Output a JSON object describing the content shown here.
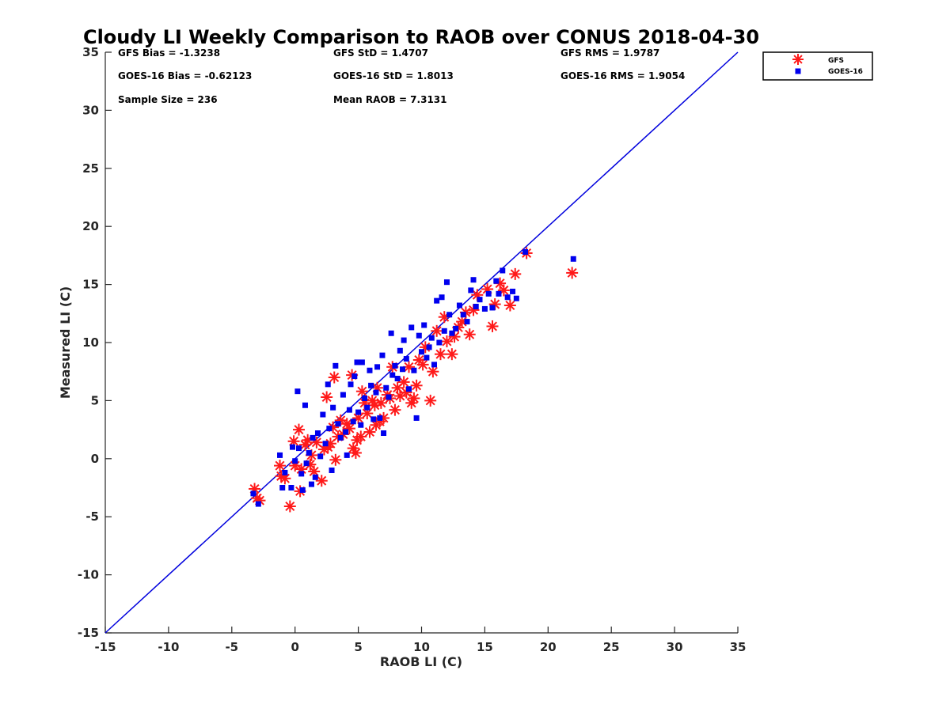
{
  "chart_data": {
    "type": "scatter",
    "title": "Cloudy LI Weekly Comparison to RAOB over CONUS 2018-04-30",
    "xlabel": "RAOB LI (C)",
    "ylabel": "Measured LI (C)",
    "xlim": [
      -15,
      35
    ],
    "ylim": [
      -15,
      35
    ],
    "xticks": [
      "-15",
      "-10",
      "-5",
      "0",
      "5",
      "10",
      "15",
      "20",
      "25",
      "30",
      "35"
    ],
    "yticks": [
      "-15",
      "-10",
      "-5",
      "0",
      "5",
      "10",
      "15",
      "20",
      "25",
      "30",
      "35"
    ],
    "grid": false,
    "legend_position": "outside top-right",
    "stats": {
      "gfs_bias": "GFS Bias = -1.3238",
      "gfs_std": "GFS StD = 1.4707",
      "gfs_rms": "GFS RMS = 1.9787",
      "goes_bias": "GOES-16 Bias = -0.62123",
      "goes_std": "GOES-16 StD = 1.8013",
      "goes_rms": "GOES-16 RMS = 1.9054",
      "sample_size": "Sample Size = 236",
      "mean_raob": "Mean RAOB = 7.3131"
    },
    "reference_line": {
      "x": [
        -15,
        35
      ],
      "y": [
        -15,
        35
      ],
      "color": "#0000dd"
    },
    "series": [
      {
        "name": "GFS",
        "marker": "asterisk",
        "color": "#ff1a1a",
        "points": [
          [
            -3.2,
            -2.6
          ],
          [
            -3.0,
            -3.4
          ],
          [
            -2.8,
            -3.6
          ],
          [
            -1.2,
            -0.6
          ],
          [
            -1.1,
            -1.5
          ],
          [
            -0.8,
            -1.7
          ],
          [
            -0.4,
            -4.1
          ],
          [
            -0.1,
            1.5
          ],
          [
            0.0,
            -0.6
          ],
          [
            0.3,
            2.5
          ],
          [
            0.4,
            -2.8
          ],
          [
            0.5,
            -0.9
          ],
          [
            0.8,
            1.2
          ],
          [
            1.0,
            1.6
          ],
          [
            1.2,
            -0.5
          ],
          [
            1.3,
            0.3
          ],
          [
            1.5,
            -1.1
          ],
          [
            1.7,
            1.4
          ],
          [
            2.1,
            -1.9
          ],
          [
            2.3,
            0.8
          ],
          [
            2.5,
            5.3
          ],
          [
            2.6,
            1.0
          ],
          [
            2.8,
            1.3
          ],
          [
            3.0,
            2.7
          ],
          [
            3.1,
            7.0
          ],
          [
            3.2,
            -0.1
          ],
          [
            3.4,
            1.9
          ],
          [
            3.6,
            3.3
          ],
          [
            3.8,
            2.1
          ],
          [
            4.1,
            3.0
          ],
          [
            4.3,
            2.6
          ],
          [
            4.5,
            7.2
          ],
          [
            4.6,
            0.9
          ],
          [
            4.8,
            0.5
          ],
          [
            4.9,
            1.6
          ],
          [
            5.0,
            3.5
          ],
          [
            5.2,
            1.9
          ],
          [
            5.3,
            5.8
          ],
          [
            5.5,
            4.8
          ],
          [
            5.7,
            3.9
          ],
          [
            5.9,
            2.3
          ],
          [
            6.1,
            5.0
          ],
          [
            6.3,
            4.6
          ],
          [
            6.4,
            2.9
          ],
          [
            6.5,
            6.1
          ],
          [
            6.7,
            3.2
          ],
          [
            6.8,
            4.8
          ],
          [
            7.0,
            3.5
          ],
          [
            7.3,
            5.5
          ],
          [
            7.5,
            5.2
          ],
          [
            7.7,
            7.9
          ],
          [
            7.9,
            4.2
          ],
          [
            8.1,
            6.1
          ],
          [
            8.3,
            5.4
          ],
          [
            8.6,
            6.6
          ],
          [
            8.8,
            5.7
          ],
          [
            9.0,
            7.9
          ],
          [
            9.2,
            4.8
          ],
          [
            9.4,
            5.2
          ],
          [
            9.6,
            6.3
          ],
          [
            9.8,
            8.5
          ],
          [
            10.1,
            8.1
          ],
          [
            10.3,
            9.6
          ],
          [
            10.7,
            5.0
          ],
          [
            10.9,
            7.5
          ],
          [
            11.2,
            11.0
          ],
          [
            11.5,
            9.0
          ],
          [
            11.8,
            12.2
          ],
          [
            12.0,
            10.1
          ],
          [
            12.4,
            9.0
          ],
          [
            12.6,
            10.5
          ],
          [
            12.9,
            11.3
          ],
          [
            13.2,
            11.8
          ],
          [
            13.5,
            12.6
          ],
          [
            13.8,
            10.7
          ],
          [
            14.1,
            12.8
          ],
          [
            14.4,
            14.1
          ],
          [
            15.2,
            14.6
          ],
          [
            15.6,
            11.4
          ],
          [
            15.8,
            13.3
          ],
          [
            16.2,
            15.1
          ],
          [
            16.5,
            14.5
          ],
          [
            17.0,
            13.2
          ],
          [
            17.4,
            15.9
          ],
          [
            18.3,
            17.7
          ],
          [
            21.9,
            16.0
          ]
        ]
      },
      {
        "name": "GOES-16",
        "marker": "square",
        "color": "#0000ee",
        "points": [
          [
            -3.3,
            -3.0
          ],
          [
            -2.9,
            -3.9
          ],
          [
            -1.2,
            0.3
          ],
          [
            -1.0,
            -2.5
          ],
          [
            -0.8,
            -1.2
          ],
          [
            -0.3,
            -2.5
          ],
          [
            -0.2,
            1.0
          ],
          [
            0.0,
            -0.2
          ],
          [
            0.2,
            5.8
          ],
          [
            0.3,
            0.9
          ],
          [
            0.5,
            -1.3
          ],
          [
            0.6,
            -2.7
          ],
          [
            0.8,
            4.6
          ],
          [
            0.9,
            -0.4
          ],
          [
            1.1,
            0.5
          ],
          [
            1.3,
            -2.2
          ],
          [
            1.4,
            1.8
          ],
          [
            1.6,
            -1.6
          ],
          [
            1.8,
            2.2
          ],
          [
            2.0,
            0.2
          ],
          [
            2.2,
            3.8
          ],
          [
            2.4,
            1.3
          ],
          [
            2.6,
            6.4
          ],
          [
            2.7,
            2.6
          ],
          [
            2.9,
            -1.0
          ],
          [
            3.0,
            4.4
          ],
          [
            3.2,
            8.0
          ],
          [
            3.4,
            3.0
          ],
          [
            3.6,
            1.8
          ],
          [
            3.8,
            5.5
          ],
          [
            4.0,
            2.3
          ],
          [
            4.1,
            0.3
          ],
          [
            4.3,
            4.2
          ],
          [
            4.4,
            6.4
          ],
          [
            4.6,
            3.2
          ],
          [
            4.7,
            7.1
          ],
          [
            4.9,
            8.3
          ],
          [
            5.0,
            4.0
          ],
          [
            5.2,
            2.9
          ],
          [
            5.3,
            8.3
          ],
          [
            5.5,
            5.2
          ],
          [
            5.7,
            4.4
          ],
          [
            5.9,
            7.6
          ],
          [
            6.0,
            6.3
          ],
          [
            6.2,
            3.4
          ],
          [
            6.4,
            5.7
          ],
          [
            6.5,
            7.9
          ],
          [
            6.7,
            3.5
          ],
          [
            6.9,
            8.9
          ],
          [
            7.0,
            2.2
          ],
          [
            7.2,
            6.1
          ],
          [
            7.4,
            5.3
          ],
          [
            7.6,
            10.8
          ],
          [
            7.7,
            7.2
          ],
          [
            7.9,
            8.0
          ],
          [
            8.1,
            6.9
          ],
          [
            8.3,
            9.3
          ],
          [
            8.5,
            7.7
          ],
          [
            8.6,
            10.2
          ],
          [
            8.8,
            8.6
          ],
          [
            9.0,
            6.0
          ],
          [
            9.2,
            11.3
          ],
          [
            9.4,
            7.6
          ],
          [
            9.6,
            3.5
          ],
          [
            9.8,
            10.6
          ],
          [
            10.0,
            9.2
          ],
          [
            10.2,
            11.5
          ],
          [
            10.4,
            8.7
          ],
          [
            10.6,
            9.6
          ],
          [
            10.8,
            10.4
          ],
          [
            11.0,
            8.1
          ],
          [
            11.2,
            13.6
          ],
          [
            11.4,
            10.0
          ],
          [
            11.6,
            13.9
          ],
          [
            11.8,
            11.0
          ],
          [
            12.0,
            15.2
          ],
          [
            12.2,
            12.4
          ],
          [
            12.4,
            10.8
          ],
          [
            12.7,
            11.2
          ],
          [
            13.0,
            13.2
          ],
          [
            13.3,
            12.4
          ],
          [
            13.6,
            11.8
          ],
          [
            13.9,
            14.5
          ],
          [
            14.1,
            15.4
          ],
          [
            14.3,
            13.1
          ],
          [
            14.6,
            13.7
          ],
          [
            15.0,
            12.9
          ],
          [
            15.3,
            14.2
          ],
          [
            15.6,
            13.0
          ],
          [
            15.9,
            15.3
          ],
          [
            16.1,
            14.2
          ],
          [
            16.4,
            16.2
          ],
          [
            16.8,
            13.9
          ],
          [
            17.2,
            14.4
          ],
          [
            17.5,
            13.8
          ],
          [
            18.2,
            17.8
          ],
          [
            22.0,
            17.2
          ]
        ]
      }
    ]
  }
}
